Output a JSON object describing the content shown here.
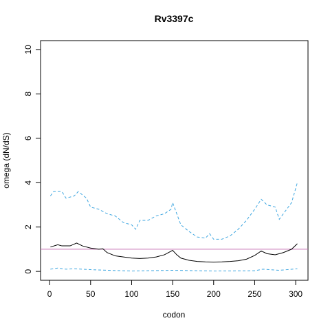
{
  "chart_data": {
    "type": "line",
    "title": "Rv3397c",
    "xlabel": "codon",
    "ylabel": "omega (dN/dS)",
    "xlim": [
      -11,
      315
    ],
    "ylim": [
      -0.4,
      10.4
    ],
    "xticks": [
      0,
      50,
      100,
      150,
      200,
      250,
      300
    ],
    "yticks": [
      0,
      2,
      4,
      6,
      8,
      10
    ],
    "hline": 1,
    "hline_color": "#c870b4",
    "series": [
      {
        "color": "#000000",
        "dashed": false,
        "x": [
          1,
          10,
          15,
          25,
          33,
          40,
          50,
          60,
          65,
          70,
          80,
          90,
          100,
          110,
          120,
          130,
          140,
          150,
          155,
          160,
          170,
          180,
          190,
          200,
          210,
          220,
          230,
          240,
          250,
          258,
          265,
          275,
          285,
          295,
          302
        ],
        "values": [
          1.1,
          1.2,
          1.15,
          1.15,
          1.28,
          1.15,
          1.05,
          1.0,
          1.02,
          0.85,
          0.7,
          0.65,
          0.6,
          0.58,
          0.6,
          0.65,
          0.75,
          0.95,
          0.75,
          0.6,
          0.5,
          0.45,
          0.43,
          0.42,
          0.43,
          0.45,
          0.48,
          0.55,
          0.72,
          0.92,
          0.8,
          0.75,
          0.85,
          1.0,
          1.25
        ]
      },
      {
        "color": "#3ea6e0",
        "dashed": true,
        "x": [
          1,
          5,
          15,
          20,
          30,
          35,
          45,
          50,
          60,
          70,
          80,
          90,
          100,
          105,
          110,
          120,
          130,
          140,
          148,
          150,
          155,
          160,
          170,
          180,
          190,
          195,
          200,
          210,
          220,
          230,
          240,
          250,
          258,
          265,
          275,
          280,
          285,
          295,
          302
        ],
        "values": [
          3.4,
          3.6,
          3.6,
          3.3,
          3.4,
          3.6,
          3.3,
          2.9,
          2.8,
          2.6,
          2.5,
          2.2,
          2.1,
          1.9,
          2.3,
          2.3,
          2.5,
          2.6,
          2.8,
          3.1,
          2.6,
          2.1,
          1.8,
          1.55,
          1.5,
          1.7,
          1.45,
          1.45,
          1.6,
          1.9,
          2.3,
          2.8,
          3.25,
          3.0,
          2.9,
          2.35,
          2.6,
          3.1,
          4.0
        ]
      },
      {
        "color": "#3ea6e0",
        "dashed": true,
        "x": [
          1,
          10,
          20,
          30,
          50,
          70,
          100,
          150,
          200,
          250,
          260,
          280,
          302
        ],
        "values": [
          0.1,
          0.15,
          0.1,
          0.12,
          0.08,
          0.05,
          0.02,
          0.05,
          0.02,
          0.03,
          0.1,
          0.05,
          0.12
        ]
      }
    ]
  }
}
